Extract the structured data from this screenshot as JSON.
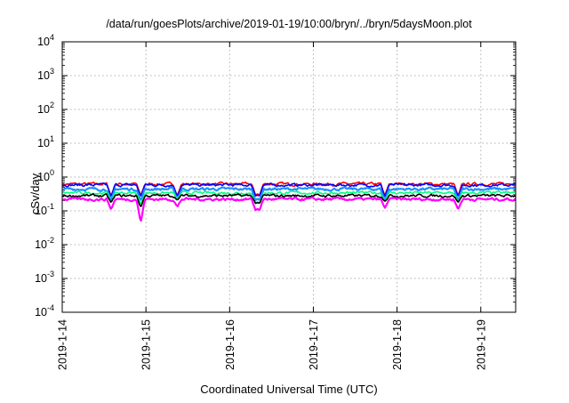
{
  "chart_data": {
    "type": "line",
    "title": "/data/run/goesPlots/archive/2019-01-19/10:00/bryn/../bryn/5daysMoon.plot",
    "xlabel": "Coordinated Universal Time (UTC)",
    "ylabel": "cSv/day",
    "yscale": "log",
    "ylim": [
      0.0001,
      10000
    ],
    "y_ticks": [
      {
        "value": 0.0001,
        "base": "10",
        "exp": "-4"
      },
      {
        "value": 0.001,
        "base": "10",
        "exp": "-3"
      },
      {
        "value": 0.01,
        "base": "10",
        "exp": "-2"
      },
      {
        "value": 0.1,
        "base": "10",
        "exp": "-1"
      },
      {
        "value": 1,
        "base": "10",
        "exp": "0"
      },
      {
        "value": 10,
        "base": "10",
        "exp": "1"
      },
      {
        "value": 100,
        "base": "10",
        "exp": "2"
      },
      {
        "value": 1000,
        "base": "10",
        "exp": "3"
      },
      {
        "value": 10000,
        "base": "10",
        "exp": "4"
      }
    ],
    "xlim": [
      "2019-01-14",
      "2019-01-19T10:00"
    ],
    "x_ticks": [
      "2019-1-14",
      "2019-1-15",
      "2019-1-16",
      "2019-1-17",
      "2019-1-18",
      "2019-1-19"
    ],
    "grid": true,
    "legend": "none",
    "series": [
      {
        "color": "#ff0000",
        "base": 0.62,
        "width": 1.6
      },
      {
        "color": "#0000ff",
        "base": 0.58,
        "width": 1.6
      },
      {
        "color": "#1e90ff",
        "base": 0.44,
        "width": 2.2
      },
      {
        "color": "#00ff7f",
        "base": 0.34,
        "width": 1.6
      },
      {
        "color": "#000000",
        "base": 0.28,
        "width": 1.6
      },
      {
        "color": "#ff00ff",
        "base": 0.22,
        "width": 2.2
      }
    ],
    "dips": [
      {
        "x": "2019-01-14T14:00",
        "value": 0.11
      },
      {
        "x": "2019-01-14T22:30",
        "value": 0.045
      },
      {
        "x": "2019-01-15T09:00",
        "value": 0.13
      },
      {
        "x": "2019-01-16T07:30",
        "value": 0.1
      },
      {
        "x": "2019-01-16T08:30",
        "value": 0.1
      },
      {
        "x": "2019-01-17T20:30",
        "value": 0.12
      },
      {
        "x": "2019-01-18T17:30",
        "value": 0.11
      }
    ]
  }
}
